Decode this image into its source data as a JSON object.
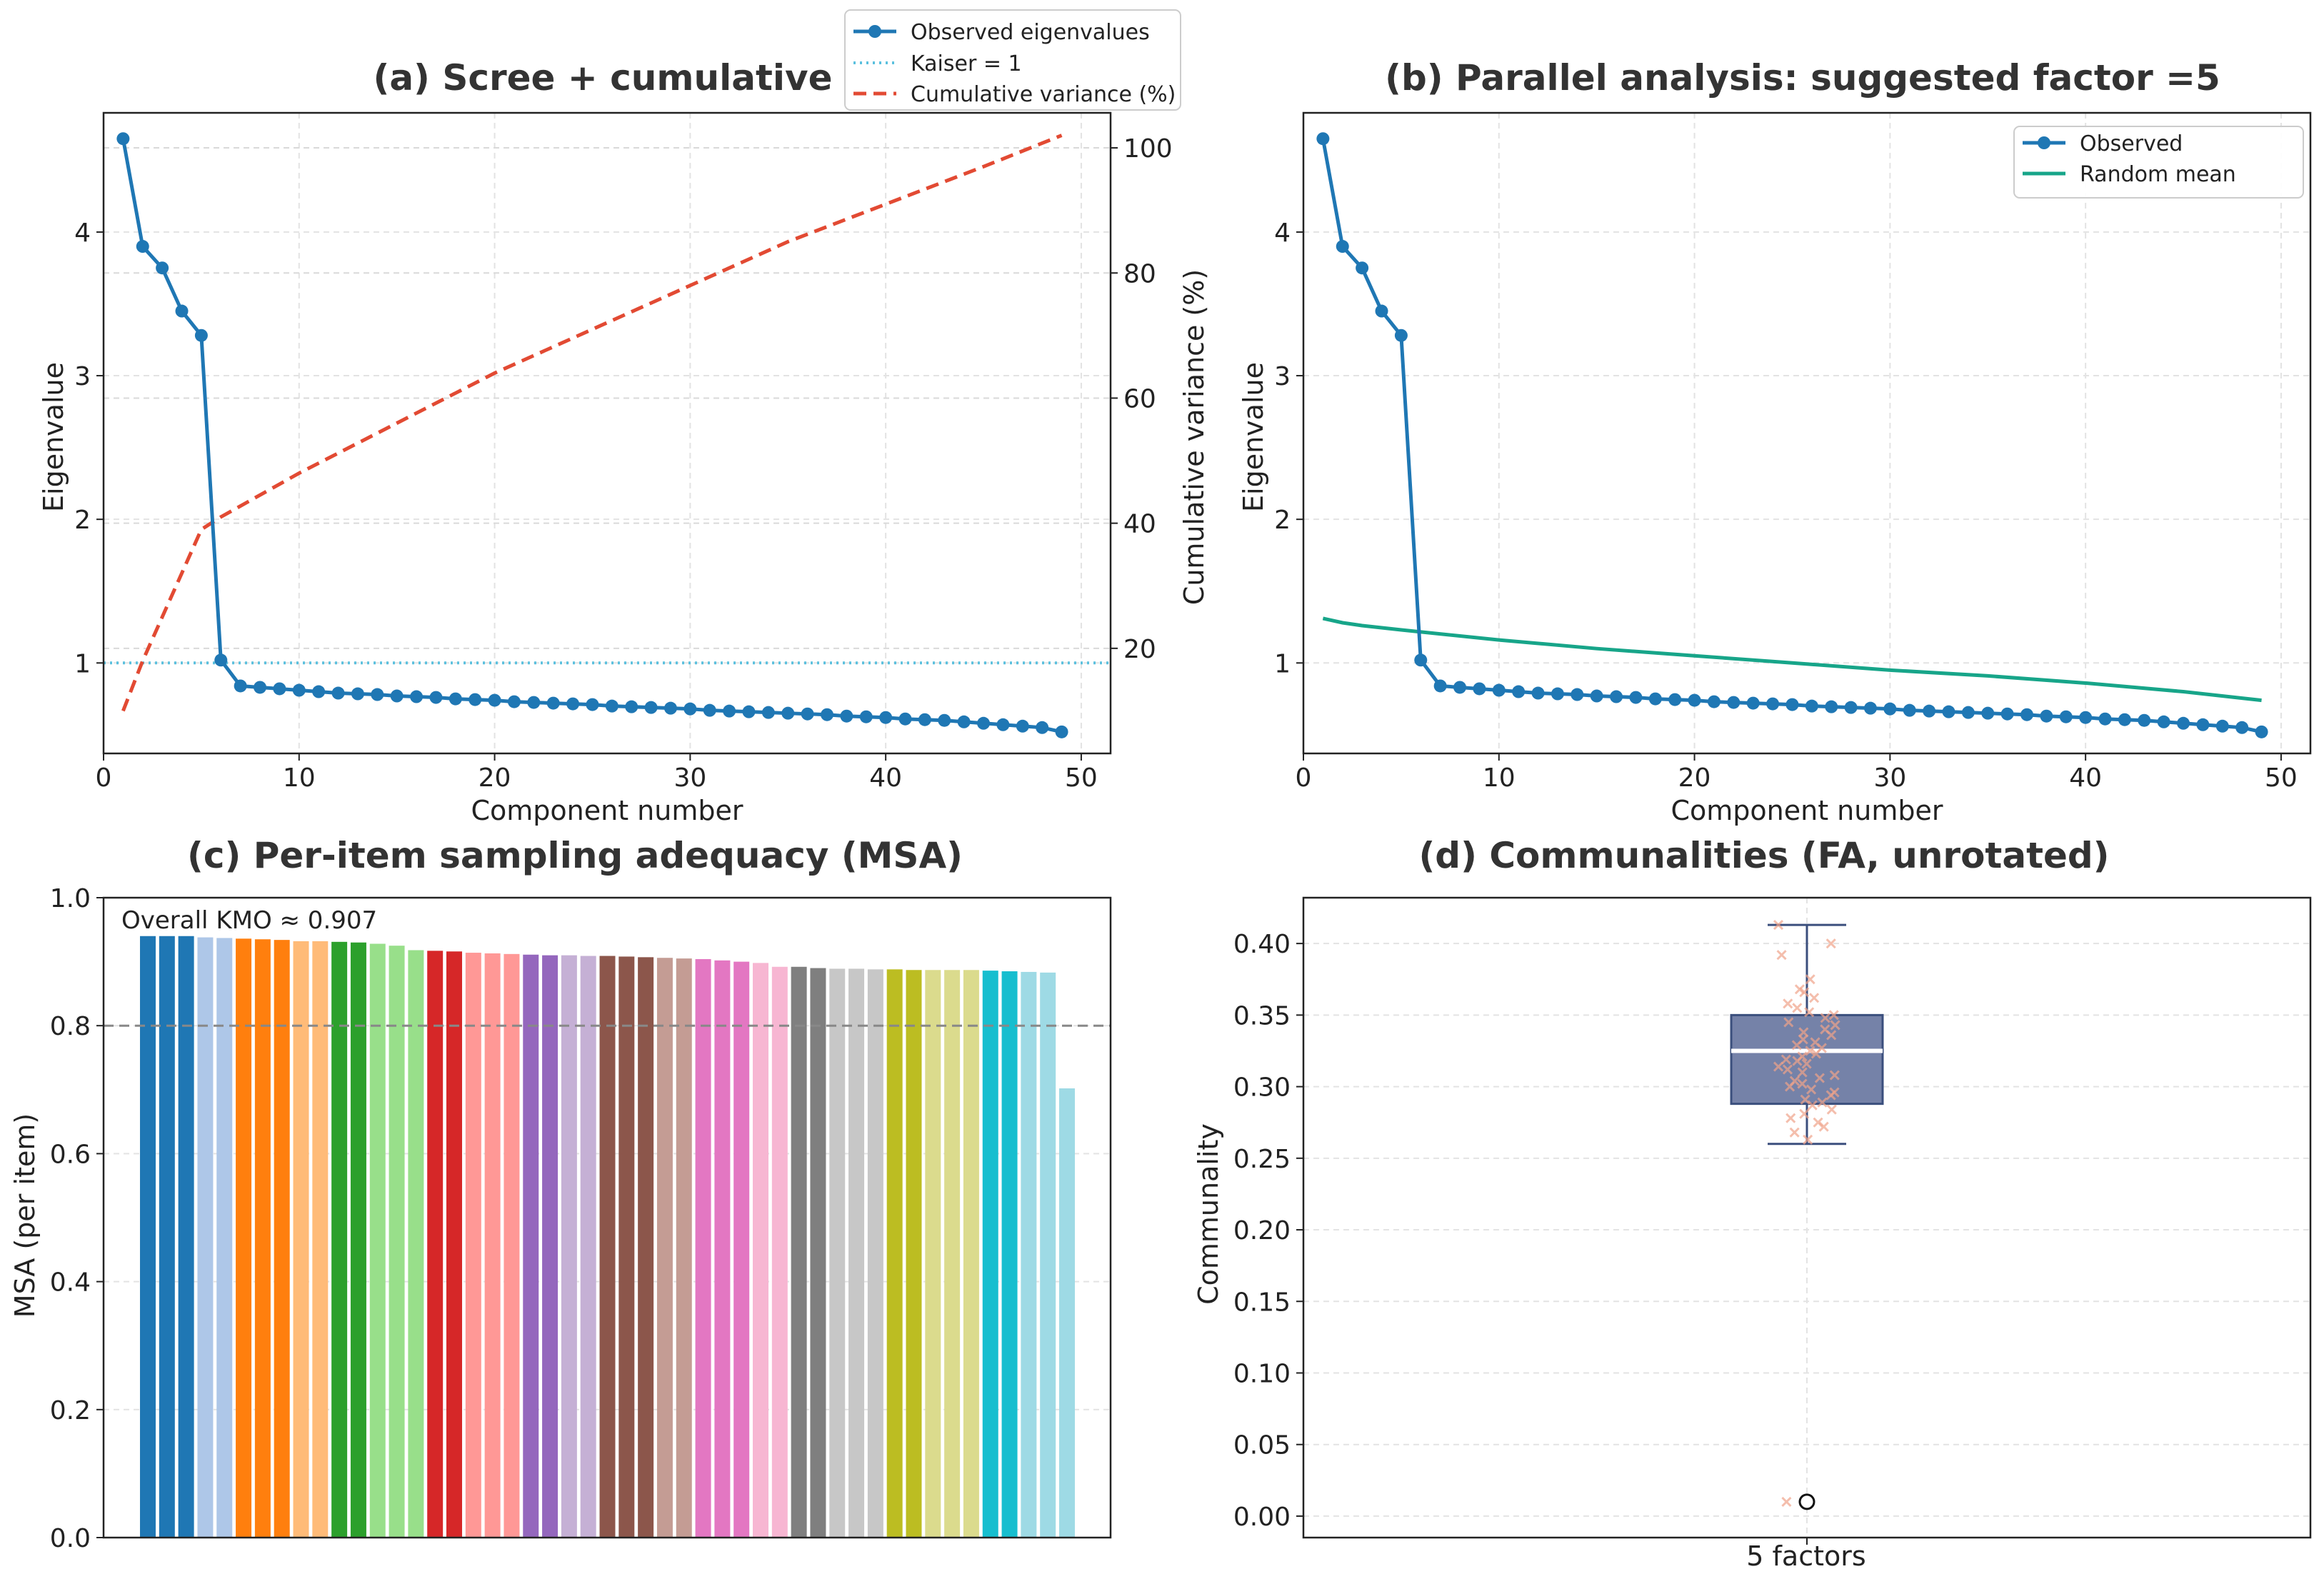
{
  "chart_data": [
    {
      "id": "a",
      "type": "line",
      "title": "(a) Scree + cumulative",
      "xlabel": "Component number",
      "ylabel": "Eigenvalue",
      "ylabel_right": "Cumulative variance (%)",
      "xlim": [
        0,
        51.5
      ],
      "ylim": [
        0.37,
        4.83
      ],
      "ylim_right": [
        3.2,
        105.6
      ],
      "xticks": [
        0,
        10,
        20,
        30,
        40,
        50
      ],
      "yticks": [
        1,
        2,
        3,
        4
      ],
      "yticks_right": [
        20,
        40,
        60,
        80,
        100
      ],
      "grid": true,
      "legend_position": "top-right, above axes",
      "legend": [
        "Observed eigenvalues",
        "Kaiser = 1",
        "Cumulative variance (%)"
      ],
      "kaiser": 1,
      "x": [
        1,
        2,
        3,
        4,
        5,
        6,
        7,
        8,
        9,
        10,
        11,
        12,
        13,
        14,
        15,
        16,
        17,
        18,
        19,
        20,
        21,
        22,
        23,
        24,
        25,
        26,
        27,
        28,
        29,
        30,
        31,
        32,
        33,
        34,
        35,
        36,
        37,
        38,
        39,
        40,
        41,
        42,
        43,
        44,
        45,
        46,
        47,
        48,
        49
      ],
      "series": [
        {
          "name": "Observed eigenvalues",
          "color": "#1f77b4",
          "values": [
            4.65,
            3.9,
            3.75,
            3.45,
            3.28,
            1.02,
            0.84,
            0.83,
            0.82,
            0.81,
            0.8,
            0.79,
            0.785,
            0.78,
            0.77,
            0.765,
            0.76,
            0.75,
            0.745,
            0.74,
            0.73,
            0.725,
            0.72,
            0.715,
            0.71,
            0.7,
            0.695,
            0.69,
            0.685,
            0.68,
            0.67,
            0.665,
            0.66,
            0.655,
            0.65,
            0.645,
            0.64,
            0.63,
            0.625,
            0.62,
            0.61,
            0.605,
            0.6,
            0.59,
            0.58,
            0.57,
            0.56,
            0.55,
            0.52
          ]
        },
        {
          "name": "Cumulative variance (%)",
          "color": "#e24a33",
          "axis": "right",
          "x": [
            1,
            2,
            3,
            4,
            5,
            6,
            10,
            15,
            20,
            25,
            30,
            35,
            40,
            45,
            49
          ],
          "values": [
            10,
            18,
            25,
            32,
            39,
            41,
            48,
            56,
            64,
            71,
            78,
            85,
            91,
            97,
            102
          ]
        }
      ]
    },
    {
      "id": "b",
      "type": "line",
      "title": "(b) Parallel analysis: suggested factor =5",
      "xlabel": "Component number",
      "ylabel": "Eigenvalue",
      "xlim": [
        0,
        51.5
      ],
      "ylim": [
        0.37,
        4.83
      ],
      "xticks": [
        0,
        10,
        20,
        30,
        40,
        50
      ],
      "yticks": [
        1,
        2,
        3,
        4
      ],
      "grid": true,
      "legend_position": "top-right",
      "legend": [
        "Observed",
        "Random mean"
      ],
      "x": [
        1,
        2,
        3,
        4,
        5,
        6,
        7,
        8,
        9,
        10,
        11,
        12,
        13,
        14,
        15,
        16,
        17,
        18,
        19,
        20,
        21,
        22,
        23,
        24,
        25,
        26,
        27,
        28,
        29,
        30,
        31,
        32,
        33,
        34,
        35,
        36,
        37,
        38,
        39,
        40,
        41,
        42,
        43,
        44,
        45,
        46,
        47,
        48,
        49
      ],
      "series": [
        {
          "name": "Observed",
          "color": "#1f77b4",
          "values": [
            4.65,
            3.9,
            3.75,
            3.45,
            3.28,
            1.02,
            0.84,
            0.83,
            0.82,
            0.81,
            0.8,
            0.79,
            0.785,
            0.78,
            0.77,
            0.765,
            0.76,
            0.75,
            0.745,
            0.74,
            0.73,
            0.725,
            0.72,
            0.715,
            0.71,
            0.7,
            0.695,
            0.69,
            0.685,
            0.68,
            0.67,
            0.665,
            0.66,
            0.655,
            0.65,
            0.645,
            0.64,
            0.63,
            0.625,
            0.62,
            0.61,
            0.605,
            0.6,
            0.59,
            0.58,
            0.57,
            0.56,
            0.55,
            0.52
          ]
        },
        {
          "name": "Random mean",
          "color": "#17a589",
          "x": [
            1,
            2,
            3,
            5,
            10,
            15,
            20,
            25,
            30,
            35,
            40,
            45,
            49
          ],
          "values": [
            1.31,
            1.28,
            1.26,
            1.23,
            1.16,
            1.1,
            1.05,
            1.0,
            0.95,
            0.91,
            0.86,
            0.8,
            0.74
          ]
        }
      ]
    },
    {
      "id": "c",
      "type": "bar",
      "title": "(c) Per-item sampling adequacy (MSA)",
      "ylabel": "MSA (per item)",
      "ylim": [
        0,
        1.0
      ],
      "yticks": [
        "0.0",
        "0.2",
        "0.4",
        "0.6",
        "0.8",
        "1.0"
      ],
      "reference_line": 0.8,
      "annotation": "Overall KMO ≈ 0.907",
      "grid": true,
      "values": [
        0.94,
        0.94,
        0.94,
        0.938,
        0.937,
        0.936,
        0.935,
        0.934,
        0.932,
        0.932,
        0.931,
        0.93,
        0.928,
        0.925,
        0.918,
        0.917,
        0.916,
        0.914,
        0.913,
        0.912,
        0.911,
        0.91,
        0.91,
        0.909,
        0.909,
        0.908,
        0.907,
        0.906,
        0.905,
        0.904,
        0.902,
        0.9,
        0.898,
        0.892,
        0.892,
        0.89,
        0.889,
        0.889,
        0.888,
        0.888,
        0.887,
        0.887,
        0.887,
        0.887,
        0.886,
        0.885,
        0.884,
        0.883,
        0.702
      ],
      "colors": [
        "#1f77b4",
        "#1f77b4",
        "#1f77b4",
        "#aec7e8",
        "#aec7e8",
        "#ff7f0e",
        "#ff7f0e",
        "#ff7f0e",
        "#ffbb78",
        "#ffbb78",
        "#2ca02c",
        "#2ca02c",
        "#98df8a",
        "#98df8a",
        "#98df8a",
        "#d62728",
        "#d62728",
        "#ff9896",
        "#ff9896",
        "#ff9896",
        "#9467bd",
        "#9467bd",
        "#c5b0d5",
        "#c5b0d5",
        "#8c564b",
        "#8c564b",
        "#8c564b",
        "#c49c94",
        "#c49c94",
        "#e377c2",
        "#e377c2",
        "#e377c2",
        "#f7b6d2",
        "#f7b6d2",
        "#7f7f7f",
        "#7f7f7f",
        "#c7c7c7",
        "#c7c7c7",
        "#c7c7c7",
        "#bcbd22",
        "#bcbd22",
        "#dbdb8d",
        "#dbdb8d",
        "#dbdb8d",
        "#17becf",
        "#17becf",
        "#9edae5",
        "#9edae5",
        "#9edae5"
      ]
    },
    {
      "id": "d",
      "type": "box",
      "title": "(d) Communalities (FA, unrotated)",
      "ylabel": "Communality",
      "category": "5 factors",
      "ylim": [
        -0.015,
        0.432
      ],
      "yticks": [
        "0.00",
        "0.05",
        "0.10",
        "0.15",
        "0.20",
        "0.25",
        "0.30",
        "0.35",
        "0.40"
      ],
      "grid": true,
      "box": {
        "whisker_low": 0.26,
        "q1": 0.288,
        "median": 0.325,
        "q3": 0.35,
        "whisker_high": 0.413,
        "outliers": [
          0.01
        ]
      },
      "points": [
        0.413,
        0.4,
        0.392,
        0.375,
        0.368,
        0.366,
        0.362,
        0.358,
        0.355,
        0.352,
        0.35,
        0.348,
        0.345,
        0.343,
        0.34,
        0.338,
        0.336,
        0.333,
        0.331,
        0.329,
        0.327,
        0.325,
        0.323,
        0.321,
        0.319,
        0.318,
        0.316,
        0.314,
        0.312,
        0.31,
        0.308,
        0.306,
        0.304,
        0.302,
        0.3,
        0.298,
        0.296,
        0.294,
        0.291,
        0.289,
        0.287,
        0.284,
        0.281,
        0.278,
        0.275,
        0.272,
        0.268,
        0.263,
        0.01
      ]
    }
  ]
}
